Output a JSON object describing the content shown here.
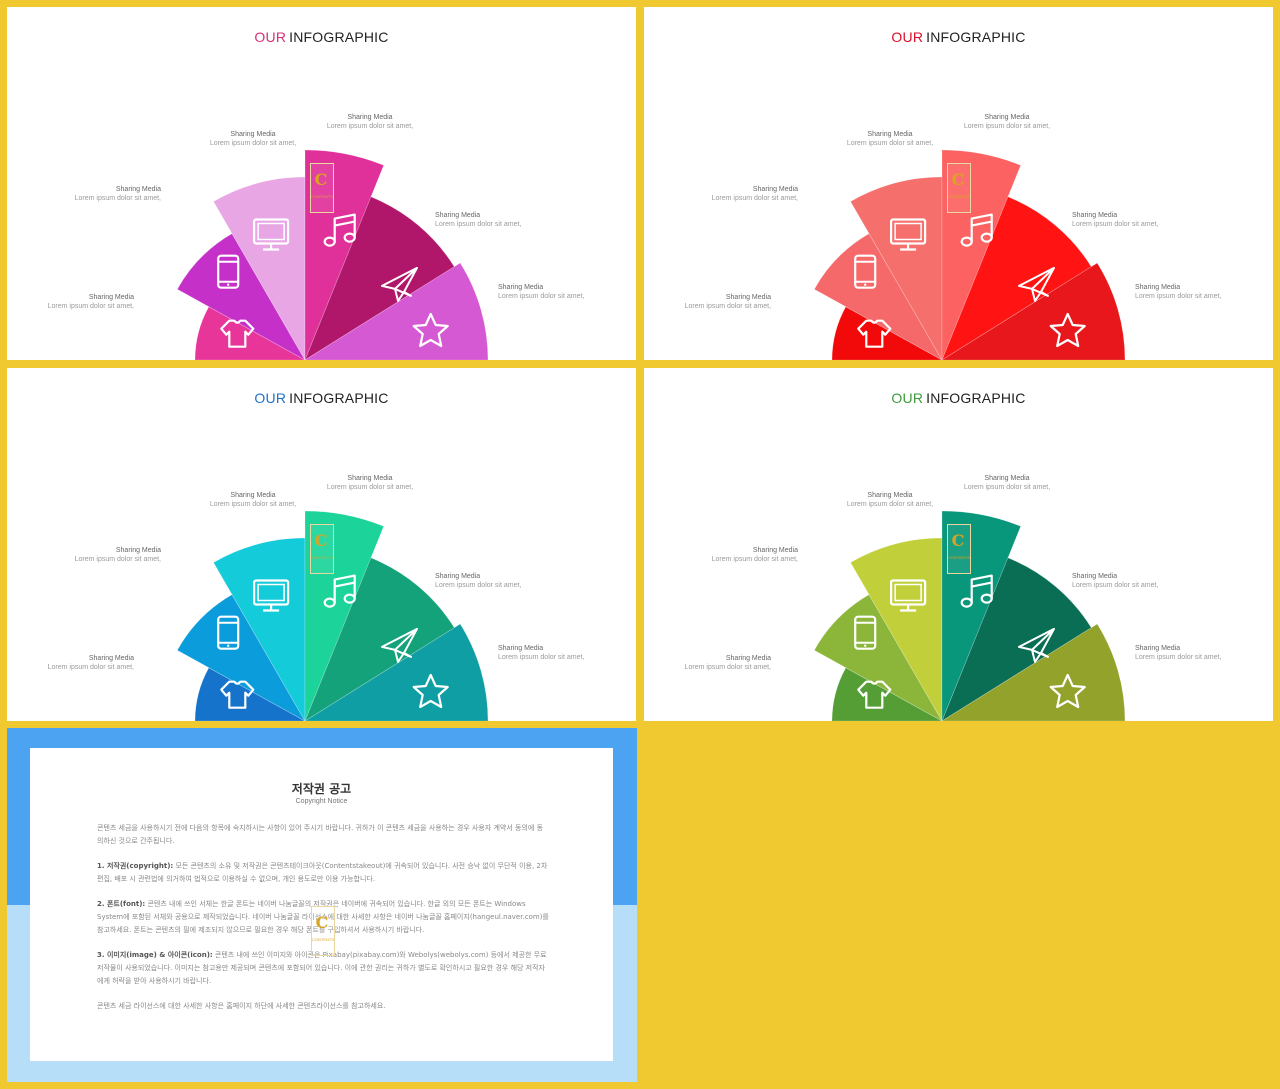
{
  "slides": [
    {
      "our_label": "OUR",
      "title": "INFOGRAPHIC",
      "our_color": "#D6317A",
      "colors": [
        "#E8359A",
        "#C531C8",
        "#E8A6E5",
        "#E0319A",
        "#B0176A",
        "#D659D4"
      ]
    },
    {
      "our_label": "OUR",
      "title": "INFOGRAPHIC",
      "our_color": "#D8102A",
      "colors": [
        "#F20A0A",
        "#F5696A",
        "#F5706C",
        "#FC6262",
        "#FF1313",
        "#E8171B"
      ]
    },
    {
      "our_label": "OUR",
      "title": "INFOGRAPHIC",
      "our_color": "#1F73C8",
      "colors": [
        "#1673CB",
        "#0B9CDB",
        "#14CBDA",
        "#1CD49A",
        "#13A27A",
        "#0E9EA3"
      ]
    },
    {
      "our_label": "OUR",
      "title": "INFOGRAPHIC",
      "our_color": "#3E9A3A",
      "colors": [
        "#559E36",
        "#8BB63A",
        "#C1D03A",
        "#08977A",
        "#0A6E55",
        "#93A22A"
      ]
    }
  ],
  "labels": [
    {
      "heading": "Sharing Media",
      "text": "Lorem ipsum dolor sit amet,"
    },
    {
      "heading": "Sharing Media",
      "text": "Lorem ipsum dolor sit amet,"
    },
    {
      "heading": "Sharing Media",
      "text": "Lorem ipsum dolor sit amet,"
    },
    {
      "heading": "Sharing Media",
      "text": "Lorem ipsum dolor sit amet,"
    },
    {
      "heading": "Sharing Media",
      "text": "Lorem ipsum dolor sit amet,"
    },
    {
      "heading": "Sharing Media",
      "text": "Lorem ipsum dolor sit amet,"
    }
  ],
  "icons": [
    "t-shirt-icon",
    "tablet-icon",
    "monitor-icon",
    "music-note-icon",
    "paper-plane-icon",
    "star-icon"
  ],
  "logo": {
    "letter": "C",
    "text": "CONTENTS"
  },
  "notice": {
    "title": "저작권 공고",
    "subtitle": "Copyright Notice",
    "intro": "콘텐츠 세금을 사용하시기 전에 다음의 항목에 숙지하시는 사항이 있어 주시기 바랍니다. 귀하가 이 콘텐츠 세금을 사용하는 경우 사용자 계약서 동의에 동의하신 것으로 간주됩니다.",
    "item1_head": "1. 저작권(copyright):",
    "item1_text": " 모든 콘텐츠의 소유 및 저작권은 콘텐츠테이크아웃(Contentstakeout)에 귀속되어 있습니다. 사전 승낙 없이 무단적 이용, 2차편집, 배포 시 관련법에 의거하여 법적으로 이용하실 수 없으며, 개인 용도로만 이용 가능합니다.",
    "item2_head": "2. 폰트(font):",
    "item2_text": " 콘텐츠 내에 쓰인 서체는 한글 폰트는 네이버 나눔글꼴의 저작권은 네이버에 귀속되어 있습니다. 한글 외의 모든 폰트는 Windows System에 포함된 서체와 공용으로 제작되었습니다. 네이버 나눔글꼴 라이선스에 대한 사세한 사항은 네이버 나눔글꼴 홈페이지(hangeul.naver.com)를 참고하세요. 폰트는 콘텐츠의 필에 제조되지 않으므로 필요한 경우 해당 폰트를 구입하셔서 사용하시기 바랍니다.",
    "item3_head": "3. 이미지(image) & 아이콘(icon):",
    "item3_text": " 콘텐츠 내에 쓰인 이미지와 아이콘은 Pixabay(pixabay.com)와 Webolys(webolys.com) 등에서 제공한 무료 저작물이 사용되었습니다. 이미지는 참고용만 제공되며 콘텐츠에 포함되어 있습니다. 이에 관한 권리는 귀하가 별도로 확인하시고 필요한 경우 해당 저작자에게 허락을 받아 사용하시기 바랍니다.",
    "outro": "콘텐츠 세금 라이선스에 대한 사세한 사항은 홈페이지 하단에 사세한 콘텐츠라이선스를 참고하세요."
  }
}
